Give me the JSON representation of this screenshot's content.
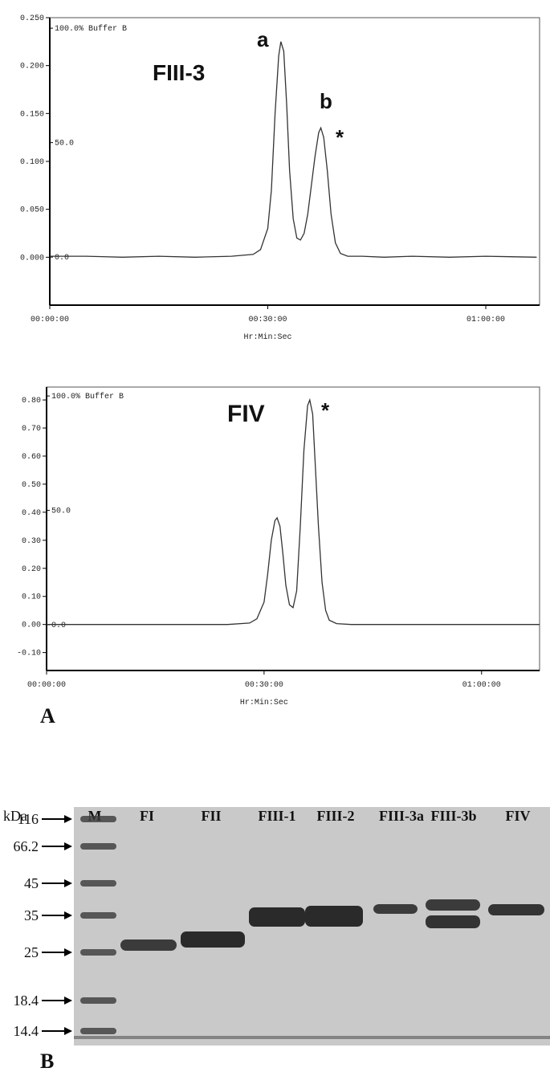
{
  "chart_data": [
    {
      "type": "line",
      "title": "FIII-3",
      "annotations": [
        "a",
        "b",
        "*"
      ],
      "xlabel": "Hr:Min:Sec",
      "color": "#333333",
      "x": [
        0,
        5,
        10,
        15,
        20,
        25,
        28,
        29,
        30,
        30.5,
        31,
        31.5,
        31.8,
        32.2,
        32.6,
        33,
        33.5,
        34,
        34.5,
        35,
        35.5,
        36,
        36.5,
        37,
        37.3,
        37.7,
        38.2,
        38.7,
        39.3,
        40,
        41,
        43,
        46,
        50,
        55,
        60,
        67
      ],
      "values": [
        0.001,
        0.001,
        0.0,
        0.001,
        0.0,
        0.001,
        0.003,
        0.008,
        0.03,
        0.07,
        0.15,
        0.21,
        0.225,
        0.215,
        0.16,
        0.09,
        0.04,
        0.02,
        0.018,
        0.025,
        0.045,
        0.075,
        0.105,
        0.13,
        0.135,
        0.125,
        0.09,
        0.045,
        0.015,
        0.004,
        0.001,
        0.001,
        0.0,
        0.001,
        0.0,
        0.001,
        0.0
      ],
      "xlim": [
        0,
        67.4
      ],
      "xticks": [
        {
          "value": 0,
          "label": "00:00:00"
        },
        {
          "value": 30,
          "label": "00:30:00"
        },
        {
          "value": 60,
          "label": "01:00:00"
        }
      ],
      "ylim": [
        -0.05,
        0.25
      ],
      "yticks": [
        {
          "value": 0.25,
          "label": "0.250"
        },
        {
          "value": 0.2,
          "label": "0.200"
        },
        {
          "value": 0.15,
          "label": "0.150"
        },
        {
          "value": 0.1,
          "label": "0.100"
        },
        {
          "value": 0.05,
          "label": "0.050"
        },
        {
          "value": 0,
          "label": "0.000"
        }
      ],
      "y2lim": [
        -21,
        104.6
      ],
      "y2ticks": [
        {
          "value": 100,
          "label": "100.0% Buffer B"
        },
        {
          "value": 50,
          "label": "50.0"
        },
        {
          "value": 0,
          "label": "0.0"
        }
      ]
    },
    {
      "type": "line",
      "title": "FIV",
      "annotations": [
        "*"
      ],
      "xlabel": "Hr:Min:Sec",
      "color": "#333333",
      "x": [
        0,
        5,
        10,
        15,
        20,
        25,
        28,
        29,
        30,
        30.5,
        31,
        31.5,
        31.8,
        32.2,
        32.6,
        33,
        33.5,
        34,
        34.5,
        35,
        35.5,
        36,
        36.3,
        36.7,
        37,
        37.5,
        38,
        38.5,
        39,
        40,
        42,
        45,
        50,
        55,
        60,
        68
      ],
      "values": [
        0.0,
        0.0,
        0.0,
        0.0,
        0.0,
        0.0,
        0.005,
        0.02,
        0.08,
        0.18,
        0.3,
        0.37,
        0.38,
        0.35,
        0.25,
        0.14,
        0.07,
        0.06,
        0.12,
        0.35,
        0.62,
        0.78,
        0.8,
        0.75,
        0.6,
        0.35,
        0.15,
        0.05,
        0.015,
        0.003,
        0.0,
        0.0,
        0.0,
        0.0,
        0.0,
        0.0
      ],
      "xlim": [
        0,
        68
      ],
      "xticks": [
        {
          "value": 0,
          "label": "00:00:00"
        },
        {
          "value": 30,
          "label": "00:30:00"
        },
        {
          "value": 60,
          "label": "01:00:00"
        }
      ],
      "ylim": [
        -0.164,
        0.846
      ],
      "yticks": [
        {
          "value": 0.8,
          "label": "0.80"
        },
        {
          "value": 0.7,
          "label": "0.70"
        },
        {
          "value": 0.6,
          "label": "0.60"
        },
        {
          "value": 0.5,
          "label": "0.50"
        },
        {
          "value": 0.4,
          "label": "0.40"
        },
        {
          "value": 0.3,
          "label": "0.30"
        },
        {
          "value": 0.2,
          "label": "0.20"
        },
        {
          "value": 0.1,
          "label": "0.10"
        },
        {
          "value": 0,
          "label": "0.00"
        },
        {
          "value": -0.1,
          "label": "-0.10"
        }
      ],
      "y2lim": [
        -20,
        103.9
      ],
      "y2ticks": [
        {
          "value": 100,
          "label": "100.0% Buffer B"
        },
        {
          "value": 50,
          "label": "50.0"
        },
        {
          "value": 0,
          "label": "0.0"
        }
      ]
    }
  ],
  "panels": [
    "A",
    "B"
  ],
  "gel": {
    "unit": "kDa",
    "lanes": [
      "M",
      "FI",
      "FII",
      "FIII-1",
      "FIII-2",
      "FIII-3a",
      "FIII-3b",
      "FIV"
    ],
    "markers": [
      "116",
      "66.2",
      "45",
      "35",
      "25",
      "18.4",
      "14.4"
    ]
  }
}
